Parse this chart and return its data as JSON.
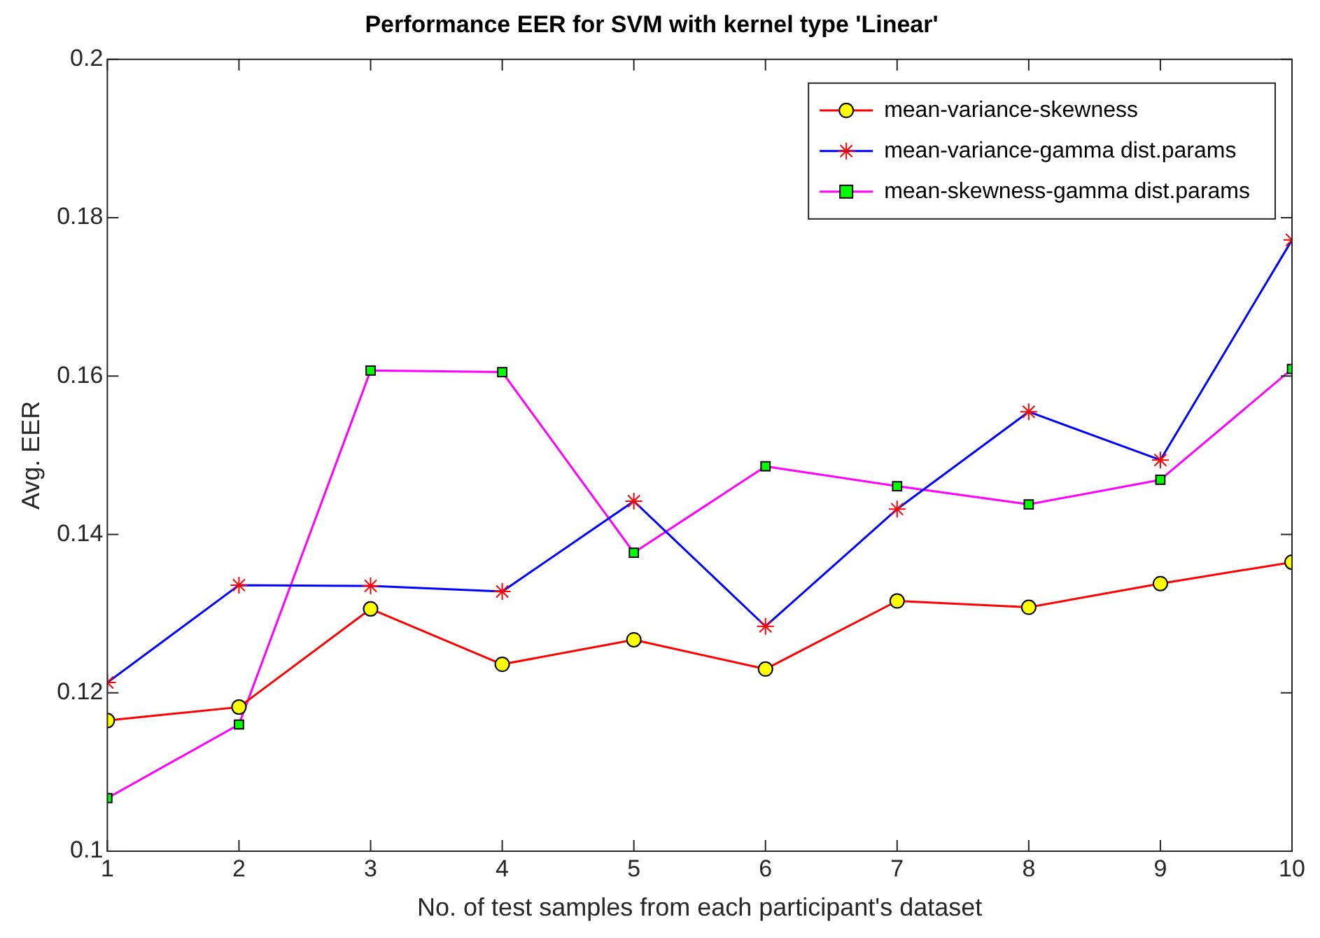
{
  "chart_data": {
    "type": "line",
    "title": "Performance EER for SVM with kernel type 'Linear'",
    "xlabel": "No. of test samples from each participant's dataset",
    "ylabel": "Avg. EER",
    "x": [
      1,
      2,
      3,
      4,
      5,
      6,
      7,
      8,
      9,
      10
    ],
    "series": [
      {
        "name": "mean-variance-skewness",
        "color": "#ff0000",
        "marker": "circle",
        "values": [
          0.1165,
          0.1182,
          0.1306,
          0.1236,
          0.1267,
          0.123,
          0.1316,
          0.1308,
          0.1338,
          0.1365
        ]
      },
      {
        "name": "mean-variance-gamma dist.params",
        "color": "#0000ff",
        "marker": "cross",
        "values": [
          0.1213,
          0.1336,
          0.1335,
          0.1328,
          0.1442,
          0.1284,
          0.1432,
          0.1555,
          0.1494,
          0.1772
        ]
      },
      {
        "name": "mean-skewness-gamma dist.params",
        "color": "#ff00ff",
        "marker": "square",
        "values": [
          0.1067,
          0.116,
          0.1607,
          0.1605,
          0.1377,
          0.1486,
          0.1461,
          0.1438,
          0.1469,
          0.1609
        ]
      }
    ],
    "xlim": [
      1,
      10
    ],
    "xticks": [
      1,
      2,
      3,
      4,
      5,
      6,
      7,
      8,
      9,
      10
    ],
    "ylim": [
      0.1,
      0.2
    ],
    "yticks": [
      0.1,
      0.12,
      0.14,
      0.16,
      0.18,
      0.2
    ],
    "legend": "top right",
    "line_style": "solid"
  }
}
